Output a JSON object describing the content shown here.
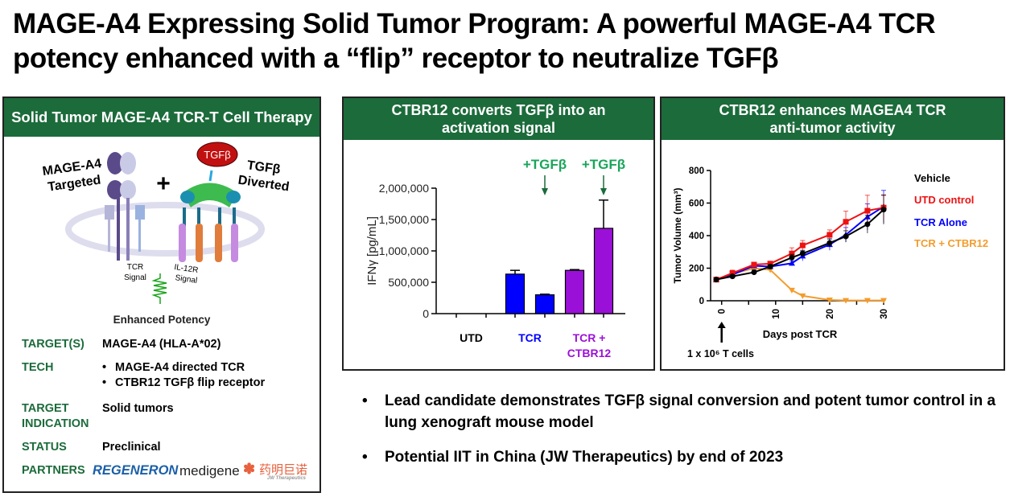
{
  "title": {
    "line1": "MAGE-A4 Expressing Solid Tumor Program: A powerful MAGE-A4 TCR",
    "line2": "potency enhanced with a “flip” receptor to neutralize TGFβ"
  },
  "left_panel": {
    "header": "Solid Tumor MAGE-A4 TCR-T Cell Therapy",
    "diagram": {
      "mage_label1": "MAGE-A4",
      "mage_label2": "Targeted",
      "plus": "+",
      "tgfb_badge": "TGFβ",
      "diverted1": "TGFβ",
      "diverted2": "Diverted",
      "tcr_signal1": "TCR",
      "tcr_signal2": "Signal",
      "il12r1": "IL-12R",
      "il12r2": "Signal",
      "enhanced": "Enhanced Potency"
    },
    "rows": [
      {
        "label": "TARGET(S)",
        "value": "MAGE-A4 (HLA-A*02)"
      },
      {
        "label": "TECH",
        "items": [
          "MAGE-A4 directed TCR",
          "CTBR12 TGFβ flip receptor"
        ]
      },
      {
        "label": "TARGET INDICATION",
        "value": "Solid tumors"
      },
      {
        "label": "STATUS",
        "value": "Preclinical"
      },
      {
        "label": "PARTNERS",
        "partners": [
          "REGENERON",
          "medigene",
          "药明巨诺",
          "JW Therapeutics"
        ]
      }
    ]
  },
  "mid_panel": {
    "header1": "CTBR12 converts TGFβ into an",
    "header2": "activation signal"
  },
  "right_panel": {
    "header1": "CTBR12 enhances MAGEA4 TCR",
    "header2": "anti-tumor activity"
  },
  "colors": {
    "green": "#1c6b3b",
    "blue": "#0000ff",
    "purple": "#9b10d8",
    "red": "#ee1111",
    "orange": "#f39c2c",
    "annot": "#1aa55a"
  },
  "chart_data": [
    {
      "type": "bar",
      "ylabel": "IFNγ [pg/mL]",
      "ylim": [
        0,
        2000000
      ],
      "yticks": [
        "0",
        "500,000",
        "1,000,000",
        "1,500,000",
        "2,000,000"
      ],
      "ytick_values": [
        0,
        500000,
        1000000,
        1500000,
        2000000
      ],
      "groups": [
        {
          "label": "UTD",
          "label2": "",
          "color": "#000000"
        },
        {
          "label": "TCR",
          "label2": "",
          "color": "#0000ff"
        },
        {
          "label": "TCR +",
          "label2": "CTBR12",
          "color": "#9b10d8"
        }
      ],
      "bars": [
        {
          "group": 0,
          "value": 0,
          "err": 0,
          "tgfb": false
        },
        {
          "group": 0,
          "value": 0,
          "err": 0,
          "tgfb": false
        },
        {
          "group": 1,
          "value": 630000,
          "err": 60000,
          "tgfb": false
        },
        {
          "group": 1,
          "value": 300000,
          "err": 10000,
          "tgfb": true
        },
        {
          "group": 2,
          "value": 690000,
          "err": 12000,
          "tgfb": false
        },
        {
          "group": 2,
          "value": 1360000,
          "err": 450000,
          "tgfb": true
        }
      ],
      "annotation": "+TGFβ"
    },
    {
      "type": "line",
      "xlabel": "Days post TCR",
      "ylabel": "Tumor Volume (mm³)",
      "xlim": [
        -1,
        30
      ],
      "ylim": [
        0,
        800
      ],
      "xticks": [
        0,
        10,
        20,
        30
      ],
      "yticks": [
        0,
        200,
        400,
        600,
        800
      ],
      "arrow_label": "1 x 10⁶ T cells",
      "x": [
        -1,
        2,
        6,
        9,
        13,
        15,
        20,
        23,
        27,
        30
      ],
      "series": [
        {
          "name": "Vehicle",
          "color": "#000000",
          "marker": "circle",
          "values": [
            130,
            150,
            175,
            210,
            265,
            290,
            355,
            395,
            470,
            560
          ],
          "err": [
            8,
            10,
            15,
            12,
            20,
            20,
            25,
            35,
            55,
            90
          ]
        },
        {
          "name": "UTD control",
          "color": "#ee1111",
          "marker": "square",
          "values": [
            130,
            170,
            222,
            228,
            290,
            340,
            405,
            485,
            553,
            572
          ],
          "err": [
            8,
            18,
            12,
            10,
            35,
            30,
            30,
            65,
            95,
            75
          ]
        },
        {
          "name": "TCR Alone",
          "color": "#0000ff",
          "marker": "triangle-up",
          "values": [
            130,
            160,
            215,
            210,
            230,
            275,
            345,
            405,
            515,
            578
          ],
          "err": [
            8,
            10,
            10,
            10,
            15,
            30,
            35,
            45,
            80,
            100
          ]
        },
        {
          "name": "TCR + CTBR12",
          "color": "#f39c2c",
          "marker": "triangle-down",
          "values": [
            130,
            165,
            200,
            190,
            65,
            30,
            5,
            2,
            2,
            2
          ],
          "err": [
            6,
            10,
            10,
            10,
            5,
            4,
            2,
            1,
            1,
            1
          ]
        }
      ]
    }
  ],
  "bullets": [
    "Lead candidate demonstrates TGFβ signal conversion and potent tumor control in a lung xenograft mouse model",
    "Potential IIT in China (JW Therapeutics) by end of 2023"
  ]
}
